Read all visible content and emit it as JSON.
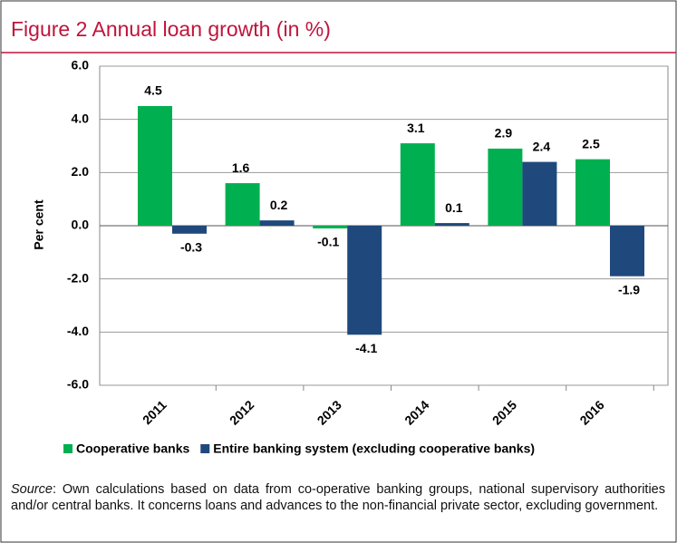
{
  "chart_data": {
    "type": "bar",
    "title": "Figure 2 Annual loan growth (in %)",
    "y_label": "Per cent",
    "categories": [
      "2011",
      "2012",
      "2013",
      "2014",
      "2015",
      "2016"
    ],
    "series": [
      {
        "name": "Cooperative banks",
        "color": "#00b050",
        "values": [
          4.5,
          1.6,
          -0.1,
          3.1,
          2.9,
          2.5
        ]
      },
      {
        "name": "Entire banking system (excluding cooperative banks)",
        "color": "#1f497d",
        "values": [
          -0.3,
          0.2,
          -4.1,
          0.1,
          2.4,
          -1.9
        ]
      }
    ],
    "ylim": [
      -6,
      6
    ],
    "yticks": [
      {
        "value": -6,
        "label": "-6.0"
      },
      {
        "value": -4,
        "label": "-4.0"
      },
      {
        "value": -2,
        "label": "-2.0"
      },
      {
        "value": 0,
        "label": "0.0"
      },
      {
        "value": 2,
        "label": "2.0"
      },
      {
        "value": 4,
        "label": "4.0"
      },
      {
        "value": 6,
        "label": "6.0"
      }
    ],
    "grid": true,
    "legend": "bottom",
    "source_label": "Source",
    "source_text": ": Own calculations based on data from co-operative banking groups, national supervisory authorities and/or central banks. It concerns loans and advances to the non-financial private sector, excluding government."
  }
}
